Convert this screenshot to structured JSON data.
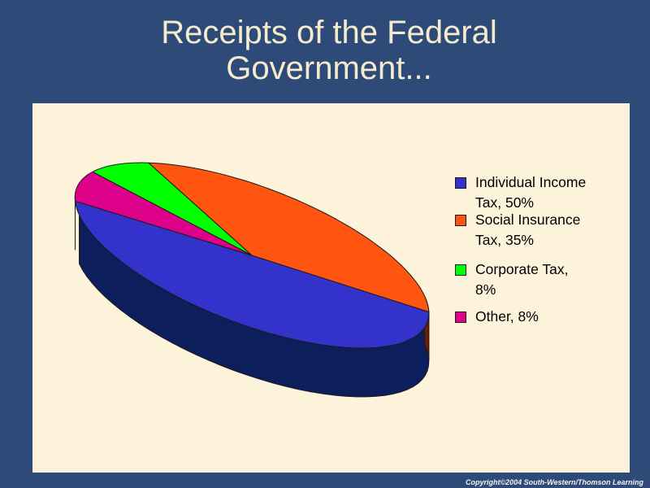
{
  "slide": {
    "title_line1": "Receipts of the Federal",
    "title_line2": "Government...",
    "copyright": "Copyright©2004 South-Western/Thomson Learning"
  },
  "chart_data": {
    "type": "pie",
    "style": "3d-tilted",
    "title": "",
    "legend_position": "right",
    "series": [
      {
        "name": "Individual Income Tax",
        "value": 50,
        "label": "Individual Income\nTax,  50%",
        "color": "#3333cc",
        "side_color": "#0c1f5c"
      },
      {
        "name": "Social Insurance Tax",
        "value": 35,
        "label": "Social Insurance\nTax, 35%",
        "color": "#ff5511",
        "side_color": "#6e1d02"
      },
      {
        "name": "Corporate Tax",
        "value": 8,
        "label": "Corporate Tax,\n8%",
        "color": "#00ff00",
        "side_color": "#006600"
      },
      {
        "name": "Other",
        "value": 8,
        "label": "Other, 8%",
        "color": "#dd0088",
        "side_color": "#5c0038"
      }
    ]
  },
  "colors": {
    "background": "#2e4a78",
    "plot_area": "#fdf3db",
    "title_text": "#f4eccd"
  }
}
